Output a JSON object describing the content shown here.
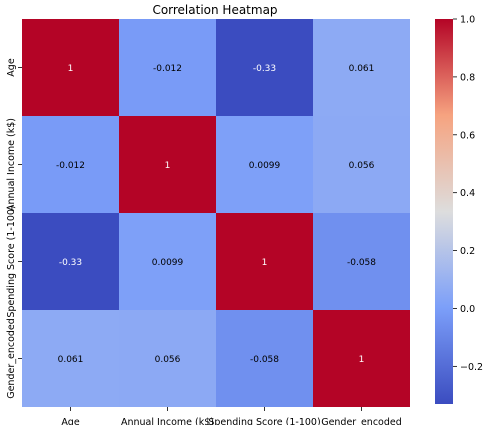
{
  "chart_data": {
    "type": "heatmap",
    "title": "Correlation Heatmap",
    "x_labels": [
      "Age",
      "Annual Income (k$)",
      "Spending Score (1-100)",
      "Gender_encoded"
    ],
    "y_labels": [
      "Age",
      "Annual Income (k$)",
      "Spending Score (1-100)",
      "Gender_encoded"
    ],
    "values": [
      [
        1,
        -0.012,
        -0.33,
        0.061
      ],
      [
        -0.012,
        1,
        0.0099,
        0.056
      ],
      [
        -0.33,
        0.0099,
        1,
        -0.058
      ],
      [
        0.061,
        0.056,
        -0.058,
        1
      ]
    ],
    "value_labels": [
      [
        "1",
        "-0.012",
        "-0.33",
        "0.061"
      ],
      [
        "-0.012",
        "1",
        "0.0099",
        "0.056"
      ],
      [
        "-0.33",
        "0.0099",
        "1",
        "-0.058"
      ],
      [
        "0.061",
        "0.056",
        "-0.058",
        "1"
      ]
    ],
    "colormap": "coolwarm",
    "colorbar": {
      "range": [
        -0.33,
        1.0
      ],
      "ticks": [
        -0.2,
        0.0,
        0.2,
        0.4,
        0.6,
        0.8,
        1.0
      ],
      "tick_labels": [
        "−0.2",
        "0.0",
        "0.2",
        "0.4",
        "0.6",
        "0.8",
        "1.0"
      ],
      "placement": "right"
    },
    "annotations": true,
    "grid": false
  }
}
